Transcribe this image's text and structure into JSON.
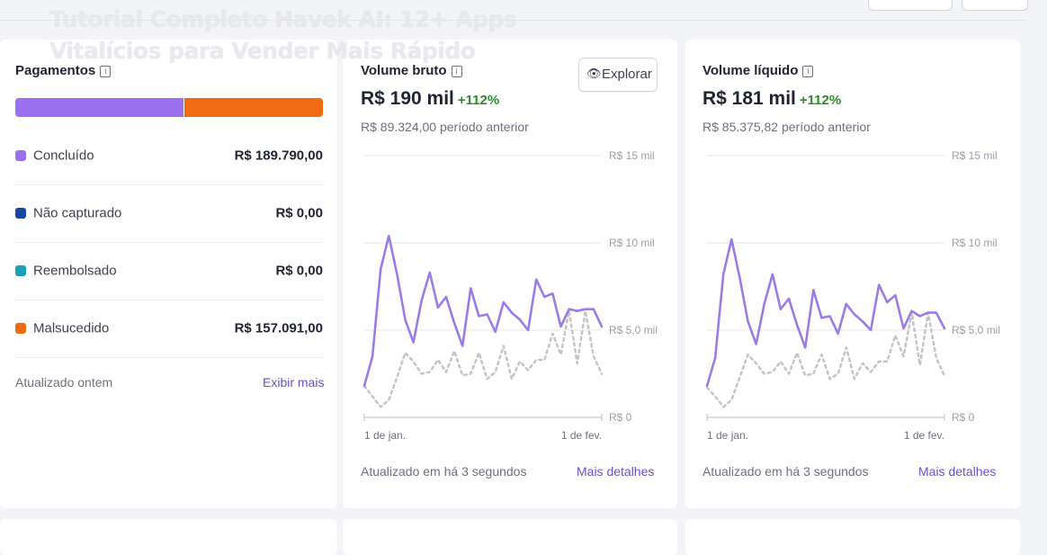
{
  "overlay": {
    "title": "Tutorial Completo Havek AI: 12+ Apps Vitalícios para Vender Mais Rápido"
  },
  "payments": {
    "title": "Pagamentos",
    "segments": {
      "concluded_color": "#9a6ff0",
      "failed_color": "#f06a0f"
    },
    "rows": [
      {
        "label": "Concluído",
        "value": "R$ 189.790,00",
        "color": "#9a6ff0"
      },
      {
        "label": "Não capturado",
        "value": "R$ 0,00",
        "color": "#1746a2"
      },
      {
        "label": "Reembolsado",
        "value": "R$ 0,00",
        "color": "#1aa1b8"
      },
      {
        "label": "Malsucedido",
        "value": "R$ 157.091,00",
        "color": "#f06a0f"
      }
    ],
    "updated": "Atualizado ontem",
    "link": "Exibir mais"
  },
  "gross": {
    "title": "Volume bruto",
    "amount": "R$ 190 mil",
    "delta": "+112%",
    "previous": "R$ 89.324,00 período anterior",
    "explore": "Explorar",
    "updated": "Atualizado em há 3 segundos",
    "link": "Mais detalhes"
  },
  "net": {
    "title": "Volume líquido",
    "amount": "R$ 181 mil",
    "delta": "+112%",
    "previous": "R$ 85.375,82 período anterior",
    "updated": "Atualizado em há 3 segundos",
    "link": "Mais detalhes"
  },
  "chart_data": [
    {
      "type": "line",
      "title": "Volume bruto",
      "yticks": [
        "R$ 15 mil",
        "R$ 10 mil",
        "R$ 5,0 mil",
        "R$ 0"
      ],
      "ylim": [
        0,
        15000
      ],
      "xticks": [
        "1 de jan.",
        "1 de fev."
      ],
      "series": [
        {
          "name": "",
          "style": "solid",
          "color": "#9a7be8",
          "values": [
            1800,
            3500,
            8500,
            10400,
            8200,
            5600,
            4300,
            6700,
            8300,
            6300,
            6900,
            5400,
            4100,
            7400,
            5800,
            5900,
            4900,
            6600,
            6000,
            5600,
            5000,
            7900,
            6900,
            7100,
            5200,
            6200,
            6100,
            6200,
            6200,
            5200
          ]
        },
        {
          "name": "",
          "style": "dashed",
          "color": "#c4c4c8",
          "values": [
            1800,
            1200,
            600,
            1000,
            2300,
            3700,
            3200,
            2500,
            2600,
            3300,
            2600,
            3800,
            2400,
            2500,
            3700,
            2200,
            2600,
            4100,
            2200,
            3200,
            2700,
            3300,
            3300,
            4800,
            3600,
            6100,
            3100,
            6100,
            3500,
            2500
          ]
        }
      ]
    },
    {
      "type": "line",
      "title": "Volume líquido",
      "yticks": [
        "R$ 15 mil",
        "R$ 10 mil",
        "R$ 5,0 mil",
        "R$ 0"
      ],
      "ylim": [
        0,
        15000
      ],
      "xticks": [
        "1 de jan.",
        "1 de fev."
      ],
      "series": [
        {
          "name": "",
          "style": "solid",
          "color": "#9a7be8",
          "values": [
            1800,
            3400,
            8200,
            10200,
            8000,
            5500,
            4200,
            6500,
            8200,
            6200,
            6800,
            5300,
            4000,
            7300,
            5700,
            5800,
            4800,
            6500,
            5900,
            5500,
            5000,
            7600,
            6600,
            7000,
            5100,
            6100,
            5800,
            6000,
            6000,
            5100
          ]
        },
        {
          "name": "",
          "style": "dashed",
          "color": "#c4c4c8",
          "values": [
            1700,
            1200,
            600,
            1000,
            2300,
            3600,
            3100,
            2500,
            2600,
            3200,
            2500,
            3700,
            2400,
            2500,
            3600,
            2200,
            2500,
            4000,
            2200,
            3100,
            2600,
            3200,
            3200,
            4700,
            3500,
            6000,
            3000,
            6000,
            3400,
            2400
          ]
        }
      ]
    }
  ]
}
